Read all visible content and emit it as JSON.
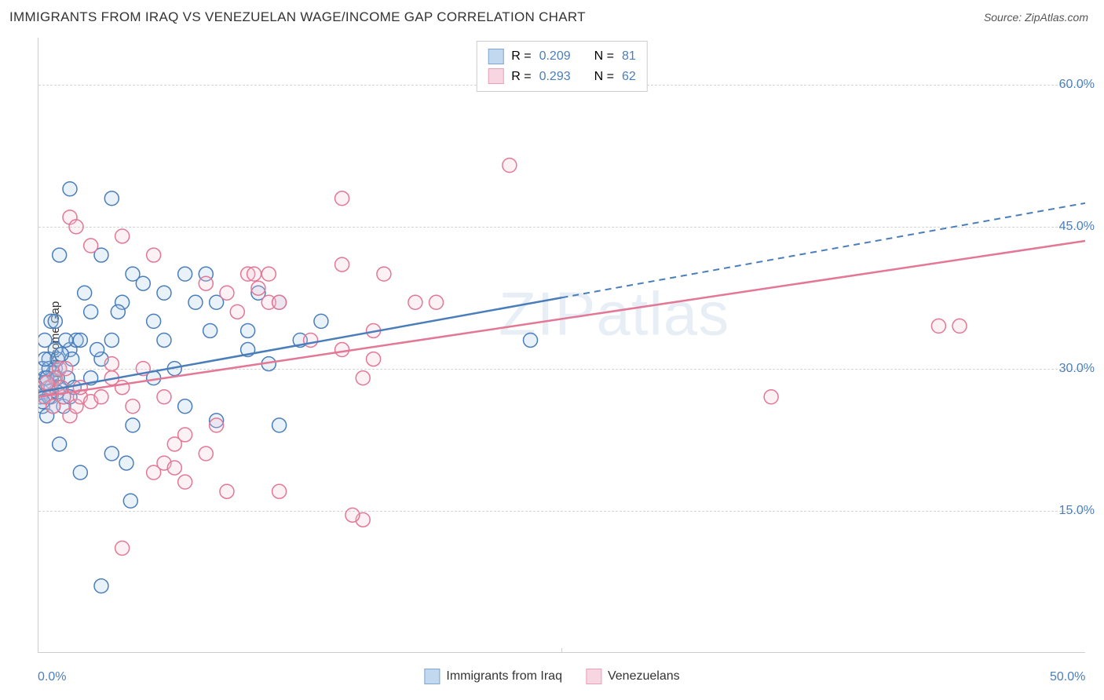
{
  "title": "IMMIGRANTS FROM IRAQ VS VENEZUELAN WAGE/INCOME GAP CORRELATION CHART",
  "source": "Source: ZipAtlas.com",
  "ylabel": "Wage/Income Gap",
  "watermark": "ZIPatlas",
  "chart": {
    "type": "scatter",
    "background_color": "#ffffff",
    "grid_color": "#d5d5d5",
    "grid_style": "dashed",
    "axis_color": "#cccccc",
    "tick_label_color": "#4a7ebb",
    "tick_fontsize": 16,
    "label_fontsize": 15,
    "title_fontsize": 17,
    "xlim": [
      0,
      50
    ],
    "ylim": [
      0,
      65
    ],
    "yticks": [
      15,
      30,
      45,
      60
    ],
    "ytick_labels": [
      "15.0%",
      "30.0%",
      "45.0%",
      "60.0%"
    ],
    "xticks": [
      0,
      50
    ],
    "xtick_labels": [
      "0.0%",
      "50.0%"
    ],
    "xtick_line_at": 25,
    "marker_radius": 9,
    "marker_stroke_width": 1.5,
    "marker_fill_opacity": 0.25,
    "trend_line_width": 2.5
  },
  "series": [
    {
      "name": "Immigrants from Iraq",
      "color": "#6da3db",
      "stroke": "#4a7ebb",
      "fill": "#a8c8e8",
      "R": "0.209",
      "N": "81",
      "trend": {
        "x1": 0,
        "y1": 27.5,
        "x2": 25,
        "y2": 37.5,
        "x2_dash": 50,
        "y2_dash": 47.5
      },
      "points": [
        [
          0.1,
          27
        ],
        [
          0.2,
          27.5
        ],
        [
          0.3,
          29
        ],
        [
          0.2,
          26
        ],
        [
          0.5,
          27
        ],
        [
          0.3,
          28.5
        ],
        [
          0.8,
          30
        ],
        [
          0.4,
          25
        ],
        [
          0.6,
          27
        ],
        [
          0.5,
          31
        ],
        [
          0.7,
          29.5
        ],
        [
          1.0,
          30
        ],
        [
          0.3,
          33
        ],
        [
          1.2,
          26
        ],
        [
          0.8,
          32
        ],
        [
          0.6,
          28
        ],
        [
          1.5,
          32
        ],
        [
          1.8,
          33
        ],
        [
          0.7,
          26
        ],
        [
          1.4,
          29
        ],
        [
          1.0,
          28
        ],
        [
          0.2,
          30
        ],
        [
          1.6,
          31
        ],
        [
          0.5,
          30
        ],
        [
          0.4,
          29
        ],
        [
          1.2,
          27
        ],
        [
          0.9,
          31
        ],
        [
          1.7,
          28
        ],
        [
          0.6,
          35
        ],
        [
          2.5,
          29
        ],
        [
          1.5,
          49
        ],
        [
          3.5,
          48
        ],
        [
          1.0,
          42
        ],
        [
          2.0,
          33
        ],
        [
          3.0,
          31
        ],
        [
          2.2,
          38
        ],
        [
          2.8,
          32
        ],
        [
          4.0,
          37
        ],
        [
          4.5,
          40
        ],
        [
          5.5,
          29
        ],
        [
          7.5,
          37
        ],
        [
          6.0,
          33
        ],
        [
          8.5,
          37
        ],
        [
          8.2,
          34
        ],
        [
          8.5,
          24.5
        ],
        [
          11.5,
          24
        ],
        [
          4.5,
          24
        ],
        [
          7.0,
          26
        ],
        [
          1.0,
          22
        ],
        [
          3.5,
          21
        ],
        [
          4.2,
          20
        ],
        [
          2.0,
          19
        ],
        [
          4.4,
          16
        ],
        [
          5.5,
          35
        ],
        [
          6.0,
          38
        ],
        [
          7.0,
          40
        ],
        [
          3.8,
          36
        ],
        [
          3.0,
          42
        ],
        [
          10.0,
          32
        ],
        [
          11.5,
          37
        ],
        [
          13.5,
          35
        ],
        [
          10.5,
          38
        ],
        [
          5.0,
          39
        ],
        [
          11.0,
          30.5
        ],
        [
          12.5,
          33
        ],
        [
          10.0,
          34
        ],
        [
          8.0,
          40
        ],
        [
          3.0,
          7
        ],
        [
          0.5,
          27
        ],
        [
          1.3,
          33
        ],
        [
          0.8,
          35
        ],
        [
          1.1,
          31.5
        ],
        [
          2.5,
          36
        ],
        [
          3.5,
          33
        ],
        [
          0.3,
          31
        ],
        [
          0.9,
          29
        ],
        [
          6.5,
          30
        ],
        [
          23.5,
          33
        ],
        [
          1.5,
          27
        ],
        [
          0.2,
          26.5
        ],
        [
          0.9,
          27.5
        ]
      ]
    },
    {
      "name": "Venezuelans",
      "color": "#e8a0b8",
      "stroke": "#e37795",
      "fill": "#f5c6d6",
      "R": "0.293",
      "N": "62",
      "trend": {
        "x1": 0,
        "y1": 27,
        "x2": 50,
        "y2": 43.5
      },
      "points": [
        [
          0.3,
          27
        ],
        [
          0.5,
          28
        ],
        [
          0.7,
          26
        ],
        [
          1.0,
          30
        ],
        [
          0.8,
          29
        ],
        [
          1.2,
          27
        ],
        [
          0.4,
          28.5
        ],
        [
          1.5,
          25
        ],
        [
          1.8,
          26
        ],
        [
          2.0,
          27
        ],
        [
          1.1,
          28
        ],
        [
          2.5,
          26.5
        ],
        [
          1.3,
          30
        ],
        [
          1.5,
          46
        ],
        [
          1.8,
          45
        ],
        [
          4.0,
          44
        ],
        [
          2.5,
          43
        ],
        [
          5.5,
          42
        ],
        [
          8.0,
          39
        ],
        [
          10.0,
          40
        ],
        [
          11.0,
          37
        ],
        [
          10.5,
          38.5
        ],
        [
          9.5,
          36
        ],
        [
          11.0,
          40
        ],
        [
          14.5,
          41
        ],
        [
          11.5,
          37
        ],
        [
          9.0,
          38
        ],
        [
          10.3,
          40
        ],
        [
          14.5,
          48
        ],
        [
          22.5,
          51.5
        ],
        [
          14.5,
          32
        ],
        [
          18.0,
          37
        ],
        [
          13.0,
          33
        ],
        [
          16.0,
          31
        ],
        [
          15.5,
          29
        ],
        [
          19.0,
          37
        ],
        [
          6.5,
          22
        ],
        [
          7.0,
          23
        ],
        [
          8.5,
          24
        ],
        [
          5.5,
          19
        ],
        [
          7.0,
          18
        ],
        [
          6.0,
          20
        ],
        [
          8.0,
          21
        ],
        [
          6.5,
          19.5
        ],
        [
          4.0,
          11
        ],
        [
          9.0,
          17
        ],
        [
          11.5,
          17
        ],
        [
          15.5,
          14
        ],
        [
          15.0,
          14.5
        ],
        [
          2.0,
          28
        ],
        [
          3.0,
          27
        ],
        [
          3.5,
          29
        ],
        [
          4.5,
          26
        ],
        [
          5.0,
          30
        ],
        [
          6.0,
          27
        ],
        [
          4.0,
          28
        ],
        [
          3.5,
          30.5
        ],
        [
          35.0,
          27
        ],
        [
          43.0,
          34.5
        ],
        [
          44.0,
          34.5
        ],
        [
          16.0,
          34
        ],
        [
          16.5,
          40
        ]
      ]
    }
  ],
  "legend_top_label": {
    "R": "R =",
    "N": "N ="
  },
  "legend_bottom": [
    "Immigrants from Iraq",
    "Venezuelans"
  ]
}
